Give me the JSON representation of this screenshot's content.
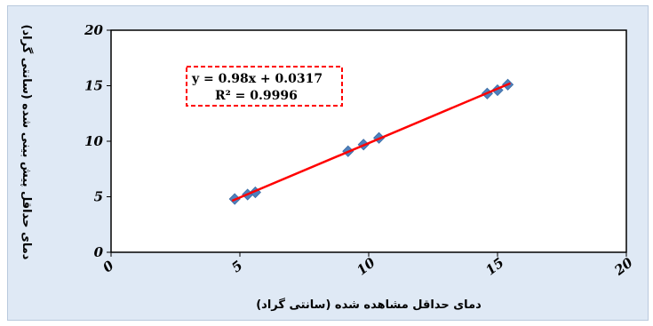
{
  "chart_data": {
    "type": "scatter",
    "xlabel": "دمای حداقل مشاهده شده (سانتی گراد)",
    "ylabel": "دمای حداقل پیش بینی شده (سانتی گراد)",
    "xlim": [
      0,
      20
    ],
    "ylim": [
      0,
      20
    ],
    "x_ticks": [
      "0",
      "5",
      "10",
      "15",
      "20"
    ],
    "y_ticks": [
      "0",
      "5",
      "10",
      "15",
      "20"
    ],
    "grid": false,
    "series": [
      {
        "marker": "diamond",
        "color": "#4f81bd",
        "points": [
          [
            4.8,
            4.8
          ],
          [
            5.3,
            5.2
          ],
          [
            5.6,
            5.4
          ],
          [
            9.2,
            9.1
          ],
          [
            9.8,
            9.7
          ],
          [
            10.4,
            10.3
          ],
          [
            14.6,
            14.3
          ],
          [
            15.0,
            14.6
          ],
          [
            15.4,
            15.1
          ]
        ]
      }
    ],
    "trendline": {
      "slope": 0.98,
      "intercept": 0.0317,
      "x_range": [
        4.7,
        15.5
      ],
      "color": "#ff0000",
      "equation": "y = 0.98x + 0.0317",
      "r2": "R² = 0.9996"
    }
  }
}
